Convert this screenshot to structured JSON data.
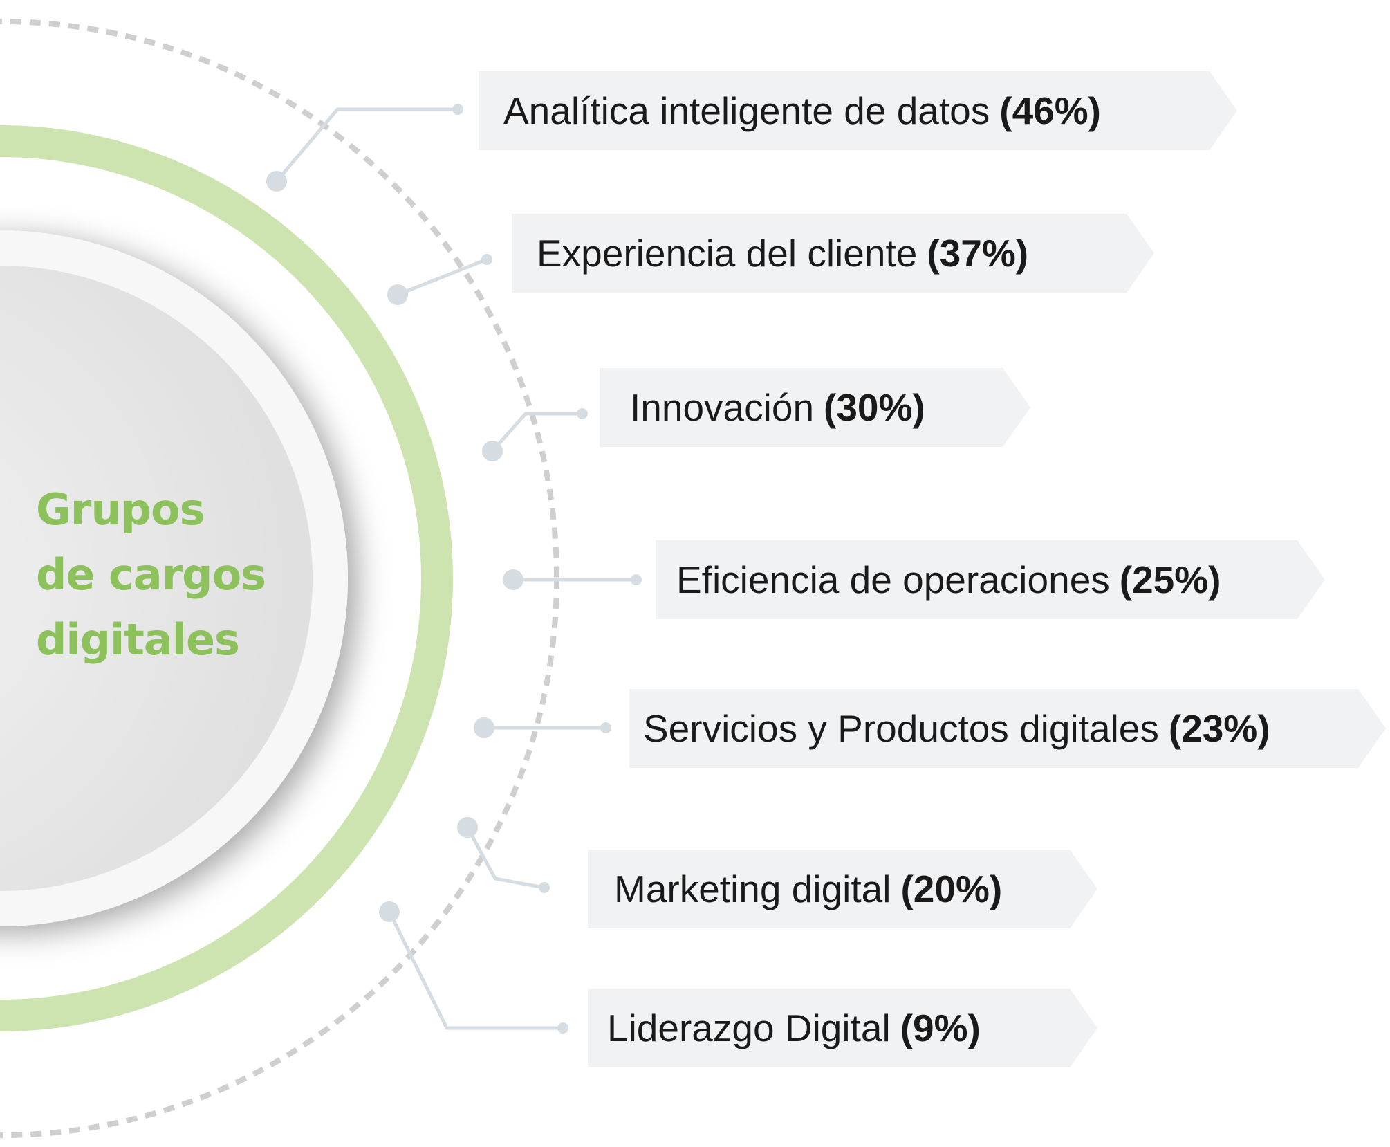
{
  "center": {
    "lines": [
      "Grupos",
      "de cargos",
      "digitales"
    ]
  },
  "colors": {
    "accent_green": "#8cc15c",
    "ring_green": "#cde3b0",
    "connector": "#d5dde2",
    "dashed": "#cfcfcf",
    "tag_bg": "#f1f2f4"
  },
  "items": [
    {
      "label": "Analítica inteligente de datos",
      "value": "(46%)"
    },
    {
      "label": "Experiencia del cliente",
      "value": "(37%)"
    },
    {
      "label": "Innovación",
      "value": "(30%)"
    },
    {
      "label": "Eficiencia de operaciones",
      "value": "(25%)"
    },
    {
      "label": "Servicios y Productos digitales",
      "value": "(23%)"
    },
    {
      "label": "Marketing digital",
      "value": "(20%)"
    },
    {
      "label": "Liderazgo Digital",
      "value": "(9%)"
    }
  ]
}
